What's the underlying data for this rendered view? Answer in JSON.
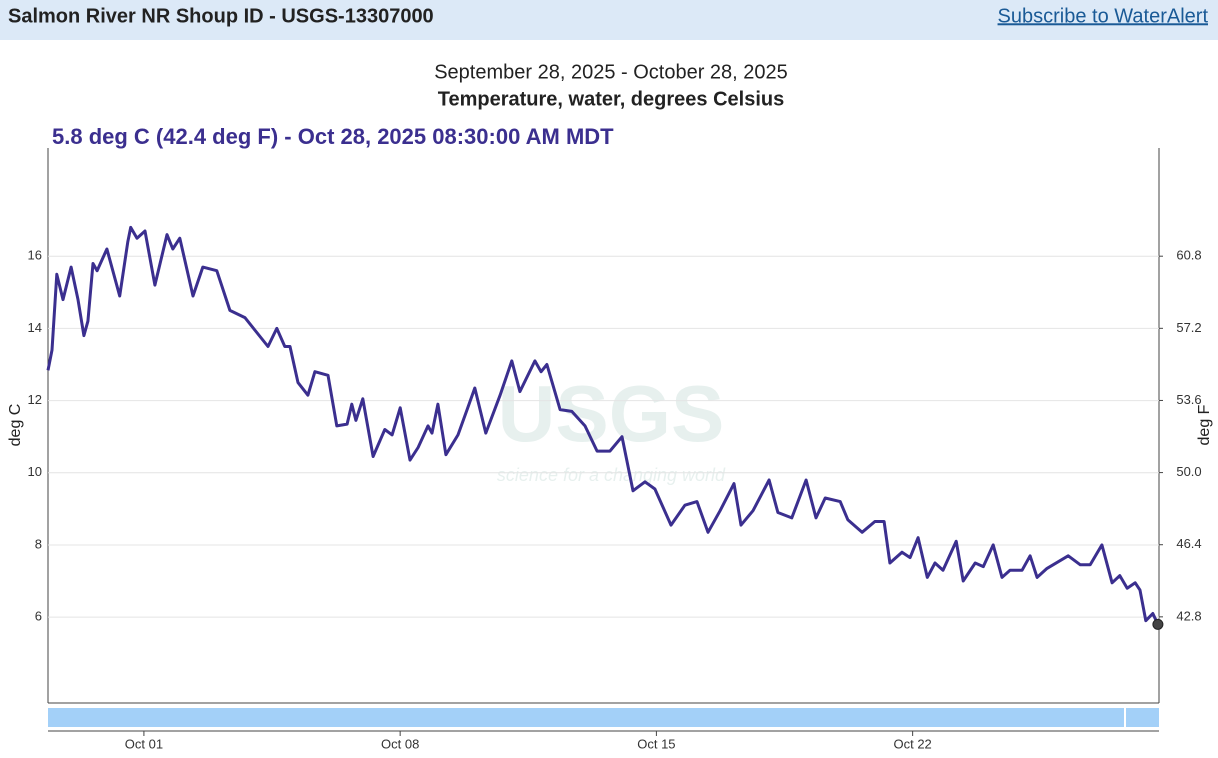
{
  "header": {
    "title": "Salmon River NR Shoup ID - USGS-13307000",
    "link": "Subscribe to WaterAlert"
  },
  "chart_data": {
    "type": "line",
    "title": "September 28, 2025 - October 28, 2025",
    "subtitle": "Temperature, water, degrees Celsius",
    "annotation": "5.8 deg C (42.4 deg F) - Oct 28, 2025 08:30:00 AM MDT",
    "watermark": [
      "USGS",
      "science for a changing world"
    ],
    "ylabel": "deg C",
    "y2label": "deg F",
    "color": "#3b2f8f",
    "x": [
      -1.62,
      -1.51,
      -1.38,
      -1.21,
      -0.99,
      -0.8,
      -0.64,
      -0.53,
      -0.39,
      -0.28,
      -0.01,
      0.34,
      0.56,
      0.64,
      0.81,
      1.03,
      1.3,
      1.63,
      1.79,
      1.98,
      2.34,
      2.61,
      2.99,
      3.35,
      3.76,
      4.39,
      4.63,
      4.85,
      4.99,
      5.21,
      5.48,
      5.67,
      6.03,
      6.27,
      6.55,
      6.68,
      6.79,
      6.98,
      7.26,
      7.58,
      7.78,
      8.0,
      8.27,
      8.49,
      8.76,
      8.87,
      9.03,
      9.25,
      9.58,
      9.83,
      10.04,
      10.34,
      10.73,
      11.05,
      11.27,
      11.68,
      11.85,
      12.01,
      12.37,
      12.69,
      13.05,
      13.38,
      13.73,
      14.06,
      14.36,
      14.69,
      14.96,
      15.4,
      15.78,
      16.11,
      16.41,
      16.74,
      17.12,
      17.31,
      17.64,
      18.08,
      18.32,
      18.7,
      19.09,
      19.36,
      19.61,
      20.02,
      20.23,
      20.62,
      20.97,
      21.22,
      21.38,
      21.71,
      21.93,
      22.15,
      22.4,
      22.61,
      22.83,
      23.19,
      23.38,
      23.71,
      23.93,
      24.2,
      24.44,
      24.66,
      24.99,
      25.21,
      25.4,
      25.67,
      26.25,
      26.58,
      26.85,
      27.17,
      27.45,
      27.66,
      27.86,
      28.08,
      28.21,
      28.37,
      28.56,
      28.7
    ],
    "values": [
      12.84,
      13.4,
      15.5,
      14.8,
      15.7,
      14.8,
      13.8,
      14.2,
      15.8,
      15.6,
      16.2,
      14.9,
      16.4,
      16.8,
      16.5,
      16.7,
      15.2,
      16.6,
      16.2,
      16.5,
      14.9,
      15.7,
      15.6,
      14.5,
      14.3,
      13.5,
      14.0,
      13.5,
      13.5,
      12.5,
      12.15,
      12.8,
      12.7,
      11.3,
      11.35,
      11.9,
      11.45,
      12.05,
      10.45,
      11.2,
      11.05,
      11.8,
      10.35,
      10.7,
      11.3,
      11.1,
      11.9,
      10.5,
      11.05,
      11.75,
      12.35,
      11.1,
      12.15,
      13.1,
      12.25,
      13.1,
      12.8,
      13.0,
      11.75,
      11.7,
      11.3,
      10.6,
      10.6,
      11.0,
      9.5,
      9.75,
      9.55,
      8.55,
      9.1,
      9.2,
      8.35,
      8.95,
      9.7,
      8.55,
      8.95,
      9.8,
      8.9,
      8.75,
      9.8,
      8.75,
      9.3,
      9.2,
      8.7,
      8.35,
      8.65,
      8.65,
      7.5,
      7.8,
      7.65,
      8.2,
      7.1,
      7.5,
      7.3,
      8.1,
      7.0,
      7.5,
      7.4,
      8.0,
      7.1,
      7.3,
      7.3,
      7.7,
      7.1,
      7.35,
      7.7,
      7.45,
      7.45,
      8.0,
      6.95,
      7.15,
      6.8,
      6.95,
      6.75,
      5.9,
      6.1,
      5.8
    ],
    "xlim": [
      -1.62,
      28.73
    ],
    "xticks": [
      {
        "value": 1,
        "label": "Oct 01"
      },
      {
        "value": 8,
        "label": "Oct 08"
      },
      {
        "value": 15,
        "label": "Oct 15"
      },
      {
        "value": 22,
        "label": "Oct 22"
      }
    ],
    "ylim": [
      3.62,
      19
    ],
    "yticks": [
      6,
      8,
      10,
      12,
      14,
      16
    ],
    "y2lim": [
      38.5,
      66.2
    ],
    "y2ticks": [
      42.8,
      46.4,
      {
        "value": 50,
        "label": "50.0"
      },
      53.6,
      57.2,
      60.8
    ],
    "grid": true
  }
}
